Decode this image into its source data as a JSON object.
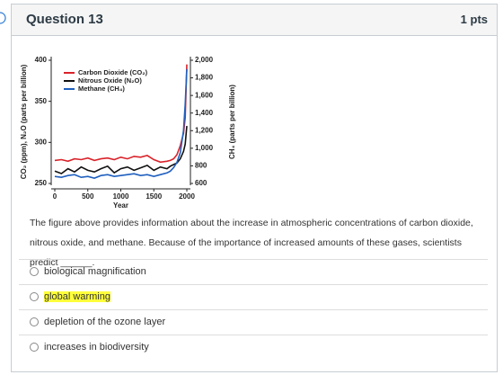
{
  "header": {
    "title": "Question 13",
    "points": "1 pts"
  },
  "chart_data": {
    "type": "line",
    "x": [
      0,
      100,
      200,
      300,
      400,
      500,
      600,
      700,
      800,
      900,
      1000,
      1100,
      1200,
      1300,
      1400,
      1500,
      1600,
      1700,
      1750,
      1800,
      1850,
      1900,
      1950,
      1975,
      2000
    ],
    "series": [
      {
        "name": "Carbon Dioxide (CO₂)",
        "color": "#d9232a",
        "values": [
          278,
          279,
          277,
          280,
          279,
          281,
          278,
          280,
          281,
          279,
          282,
          280,
          283,
          282,
          284,
          279,
          276,
          277,
          278,
          280,
          285,
          296,
          311,
          330,
          395
        ]
      },
      {
        "name": "Nitrous Oxide (N₂O)",
        "color": "#111111",
        "values": [
          265,
          262,
          268,
          264,
          270,
          266,
          264,
          268,
          271,
          263,
          268,
          270,
          266,
          269,
          272,
          266,
          270,
          268,
          271,
          273,
          275,
          280,
          289,
          298,
          320
        ]
      },
      {
        "name": "Methane (CH₄)",
        "color": "#1f5fbf",
        "axis": "y2",
        "values": [
          680,
          670,
          690,
          700,
          670,
          680,
          660,
          690,
          700,
          680,
          690,
          700,
          710,
          690,
          700,
          680,
          700,
          720,
          740,
          780,
          840,
          950,
          1200,
          1500,
          1900
        ]
      }
    ],
    "xlabel": "Year",
    "ylabel": "CO₂ (ppm), N₂O (parts per billion)",
    "y2label": "CH₄ (parts per billion)",
    "xlim": [
      0,
      2000
    ],
    "xticks": [
      0,
      500,
      1000,
      1500,
      2000
    ],
    "ylim": [
      250,
      400
    ],
    "yticks": [
      250,
      300,
      350,
      400
    ],
    "y2lim": [
      600,
      2000
    ],
    "y2ticks": [
      600,
      800,
      {
        "value": 1000,
        "label": "1,000"
      },
      {
        "value": 1200,
        "label": "1,200"
      },
      {
        "value": 1400,
        "label": "1,400"
      },
      {
        "value": 1600,
        "label": "1,600"
      },
      {
        "value": 1800,
        "label": "1,800"
      },
      {
        "value": 2000,
        "label": "2,000"
      }
    ],
    "legend": "upper-left"
  },
  "question": {
    "text": "The figure above provides information about the increase in atmospheric concentrations of carbon dioxide, nitrous oxide, and methane. Because of the importance of increased amounts of these gases, scientists predict ______."
  },
  "options": [
    "biological magnification",
    "global warming",
    "depletion of the ozone layer",
    "increases in biodiversity"
  ],
  "highlighted_option": 1
}
